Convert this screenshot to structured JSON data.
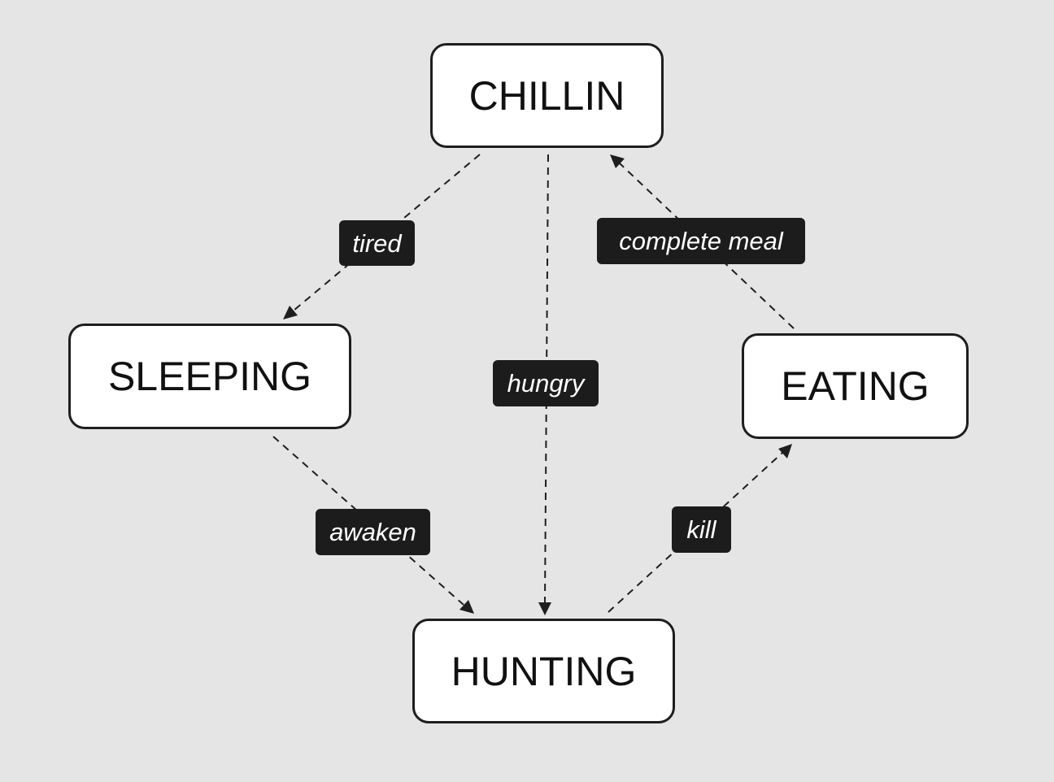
{
  "diagram": {
    "nodes": {
      "chillin": "CHILLIN",
      "sleeping": "SLEEPING",
      "eating": "EATING",
      "hunting": "HUNTING"
    },
    "edges": [
      {
        "from": "CHILLIN",
        "to": "SLEEPING",
        "label": "tired"
      },
      {
        "from": "CHILLIN",
        "to": "HUNTING",
        "label": "hungry"
      },
      {
        "from": "EATING",
        "to": "CHILLIN",
        "label": "complete meal"
      },
      {
        "from": "SLEEPING",
        "to": "HUNTING",
        "label": "awaken"
      },
      {
        "from": "HUNTING",
        "to": "EATING",
        "label": "kill"
      }
    ],
    "colors": {
      "background": "#e5e5e5",
      "node_fill": "#ffffff",
      "node_border": "#1e1e1e",
      "label_fill": "#1c1c1c",
      "label_text": "#ffffff"
    }
  }
}
